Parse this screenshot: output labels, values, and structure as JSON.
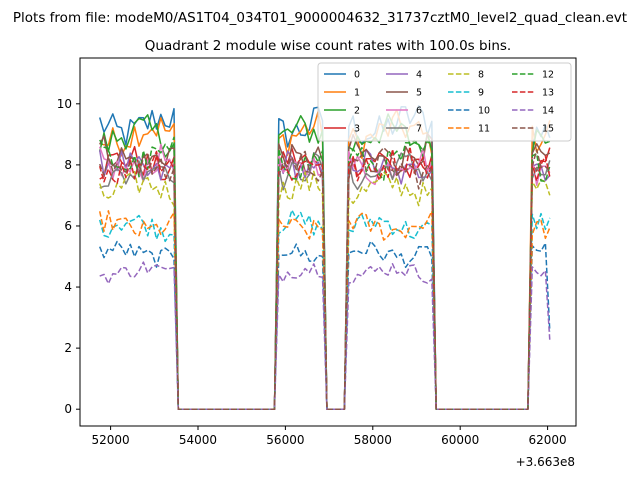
{
  "figure": {
    "suptitle": "Plots from file: modeM0/AS1T04_034T01_9000004632_31737cztM0_level2_quad_clean.evt"
  },
  "chart_data": {
    "type": "line",
    "title": "Quadrant 2 module wise count rates with 100.0s bins.",
    "xlabel": "",
    "ylabel": "",
    "x_offset_label": "+3.663e8",
    "xlim": [
      51300,
      62650
    ],
    "ylim": [
      -0.55,
      11.5
    ],
    "xticks": [
      52000,
      54000,
      56000,
      58000,
      60000,
      62000
    ],
    "yticks": [
      0,
      2,
      4,
      6,
      8,
      10
    ],
    "grid": false,
    "legend": {
      "placement": "top-right",
      "columns": 4
    },
    "segments": [
      {
        "start": 51750,
        "end": 53450
      },
      {
        "start": 55850,
        "end": 56850
      },
      {
        "start": 57450,
        "end": 59350
      },
      {
        "start": 61650,
        "end": 62050
      }
    ],
    "series": [
      {
        "name": "0",
        "level": 9.3,
        "color": "#1f77b4",
        "dash": "solid"
      },
      {
        "name": "1",
        "level": 9.0,
        "color": "#ff7f0e",
        "dash": "solid"
      },
      {
        "name": "2",
        "level": 8.9,
        "color": "#2ca02c",
        "dash": "solid"
      },
      {
        "name": "3",
        "level": 8.0,
        "color": "#d62728",
        "dash": "solid"
      },
      {
        "name": "4",
        "level": 7.9,
        "color": "#9467bd",
        "dash": "solid"
      },
      {
        "name": "5",
        "level": 8.3,
        "color": "#8c564b",
        "dash": "solid"
      },
      {
        "name": "6",
        "level": 8.0,
        "color": "#e377c2",
        "dash": "solid"
      },
      {
        "name": "7",
        "level": 7.8,
        "color": "#7f7f7f",
        "dash": "solid"
      },
      {
        "name": "8",
        "level": 7.2,
        "color": "#bcbd22",
        "dash": "dashed"
      },
      {
        "name": "9",
        "level": 6.0,
        "color": "#17becf",
        "dash": "dashed"
      },
      {
        "name": "10",
        "level": 5.1,
        "color": "#1f77b4",
        "dash": "dashed"
      },
      {
        "name": "11",
        "level": 6.0,
        "color": "#ff7f0e",
        "dash": "dashed"
      },
      {
        "name": "12",
        "level": 8.2,
        "color": "#2ca02c",
        "dash": "dashed"
      },
      {
        "name": "13",
        "level": 8.0,
        "color": "#d62728",
        "dash": "dashed"
      },
      {
        "name": "14",
        "level": 4.5,
        "color": "#9467bd",
        "dash": "dashed"
      },
      {
        "name": "15",
        "level": 7.9,
        "color": "#8c564b",
        "dash": "dashed"
      }
    ]
  }
}
